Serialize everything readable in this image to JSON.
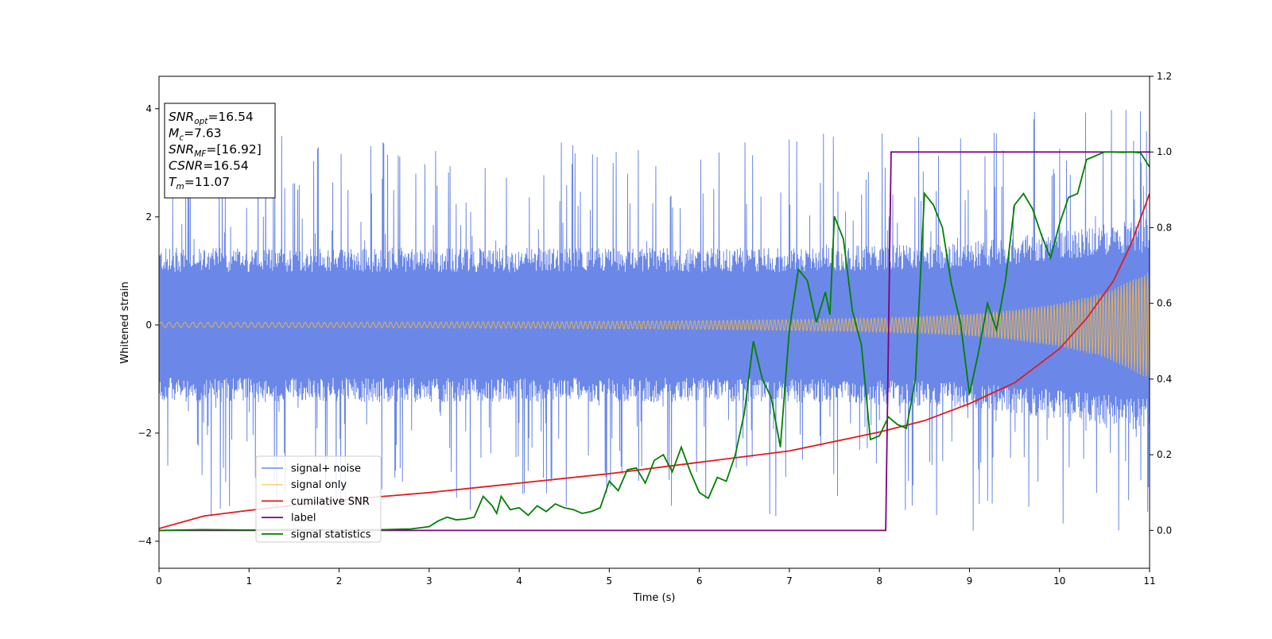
{
  "chart_data": {
    "type": "line",
    "xlabel": "Time (s)",
    "ylabel": "Whitened strain",
    "xlim": [
      0,
      11
    ],
    "ylim": [
      -4.5,
      4.6
    ],
    "y2lim": [
      -0.1,
      1.2
    ],
    "x_ticks": [
      0,
      1,
      2,
      3,
      4,
      5,
      6,
      7,
      8,
      9,
      10,
      11
    ],
    "x_tick_labels": [
      "0",
      "1",
      "2",
      "3",
      "4",
      "5",
      "6",
      "7",
      "8",
      "9",
      "10",
      "11"
    ],
    "y_ticks": [
      -4,
      -2,
      0,
      2,
      4
    ],
    "y_tick_labels": [
      "−4",
      "−2",
      "0",
      "2",
      "4"
    ],
    "y2_ticks": [
      0.0,
      0.2,
      0.4,
      0.6,
      0.8,
      1.0,
      1.2
    ],
    "y2_tick_labels": [
      "0.0",
      "0.2",
      "0.4",
      "0.6",
      "0.8",
      "1.0",
      "1.2"
    ],
    "grid": false,
    "legend_position": "lower-left",
    "annotation_box": {
      "position": "top-left",
      "lines": [
        {
          "base": "SNR",
          "sub": "opt",
          "value": "=16.54"
        },
        {
          "base": "M",
          "sub": "c",
          "value": "=7.63"
        },
        {
          "base": "SNR",
          "sub": "MF",
          "value": "=[16.92]"
        },
        {
          "base": "CSNR",
          "sub": "",
          "value": "=16.54"
        },
        {
          "base": "T",
          "sub": "m",
          "value": "=11.07"
        }
      ]
    },
    "series": [
      {
        "name": "signal+ noise",
        "color": "#6b88e8",
        "axis": "left",
        "kind": "noise_band",
        "envelope_x": [
          0,
          1,
          2,
          3,
          4,
          5,
          6,
          7,
          8,
          9,
          10,
          11
        ],
        "typical_amplitude": [
          1.3,
          1.3,
          1.3,
          1.3,
          1.3,
          1.3,
          1.3,
          1.3,
          1.35,
          1.4,
          1.6,
          1.8
        ],
        "peak_amplitude": [
          3.5,
          3.6,
          3.5,
          3.5,
          3.4,
          3.4,
          3.4,
          3.6,
          3.6,
          3.8,
          4.0,
          4.2
        ]
      },
      {
        "name": "signal only",
        "color": "#f5b942",
        "axis": "left",
        "kind": "chirp",
        "envelope_x": [
          0,
          2,
          4,
          6,
          7,
          8,
          8.5,
          9,
          9.5,
          10,
          10.5,
          11
        ],
        "envelope_amplitude": [
          0.05,
          0.05,
          0.06,
          0.08,
          0.1,
          0.13,
          0.16,
          0.2,
          0.28,
          0.4,
          0.6,
          1.0
        ]
      },
      {
        "name": "cumilative SNR",
        "color": "#e31a1c",
        "axis": "right",
        "x": [
          0,
          0.5,
          1,
          2,
          3,
          4,
          5,
          6,
          7,
          8,
          8.5,
          9,
          9.5,
          10,
          10.3,
          10.6,
          10.8,
          11
        ],
        "values": [
          0.005,
          0.038,
          0.053,
          0.08,
          0.1,
          0.125,
          0.15,
          0.18,
          0.21,
          0.26,
          0.29,
          0.335,
          0.39,
          0.48,
          0.56,
          0.66,
          0.76,
          0.89
        ]
      },
      {
        "name": "label",
        "color": "#800080",
        "axis": "right",
        "x": [
          0,
          8.07,
          8.13,
          11
        ],
        "values": [
          0.0,
          0.0,
          1.0,
          1.0
        ]
      },
      {
        "name": "signal statistics",
        "color": "#008000",
        "axis": "right",
        "x": [
          0,
          0.5,
          1,
          1.5,
          2,
          2.5,
          2.8,
          3.0,
          3.1,
          3.2,
          3.3,
          3.4,
          3.5,
          3.6,
          3.7,
          3.75,
          3.8,
          3.9,
          4.0,
          4.1,
          4.2,
          4.3,
          4.4,
          4.5,
          4.6,
          4.7,
          4.8,
          4.9,
          5.0,
          5.1,
          5.2,
          5.3,
          5.4,
          5.5,
          5.6,
          5.7,
          5.8,
          5.9,
          6.0,
          6.1,
          6.2,
          6.3,
          6.4,
          6.5,
          6.6,
          6.7,
          6.8,
          6.9,
          7.0,
          7.1,
          7.2,
          7.3,
          7.4,
          7.45,
          7.5,
          7.6,
          7.7,
          7.8,
          7.9,
          8.0,
          8.1,
          8.2,
          8.3,
          8.4,
          8.5,
          8.6,
          8.7,
          8.8,
          8.9,
          9.0,
          9.1,
          9.2,
          9.3,
          9.4,
          9.5,
          9.6,
          9.7,
          9.8,
          9.9,
          10.0,
          10.1,
          10.2,
          10.3,
          10.4,
          10.5,
          10.6,
          10.7,
          10.8,
          10.9,
          11.0
        ],
        "values": [
          0.0,
          0.002,
          0.001,
          0.003,
          0.001,
          0.002,
          0.004,
          0.01,
          0.025,
          0.035,
          0.028,
          0.03,
          0.035,
          0.09,
          0.065,
          0.045,
          0.09,
          0.055,
          0.06,
          0.04,
          0.065,
          0.05,
          0.07,
          0.06,
          0.055,
          0.045,
          0.05,
          0.06,
          0.13,
          0.105,
          0.16,
          0.165,
          0.125,
          0.185,
          0.2,
          0.155,
          0.22,
          0.155,
          0.1,
          0.085,
          0.14,
          0.13,
          0.2,
          0.31,
          0.5,
          0.4,
          0.35,
          0.22,
          0.53,
          0.69,
          0.66,
          0.55,
          0.63,
          0.57,
          0.83,
          0.77,
          0.58,
          0.49,
          0.24,
          0.25,
          0.3,
          0.28,
          0.27,
          0.4,
          0.89,
          0.86,
          0.8,
          0.65,
          0.55,
          0.36,
          0.47,
          0.6,
          0.53,
          0.66,
          0.86,
          0.89,
          0.85,
          0.78,
          0.72,
          0.81,
          0.88,
          0.89,
          0.98,
          0.99,
          1.0,
          1.0,
          0.999,
          1.0,
          0.998,
          0.96
        ]
      }
    ]
  }
}
